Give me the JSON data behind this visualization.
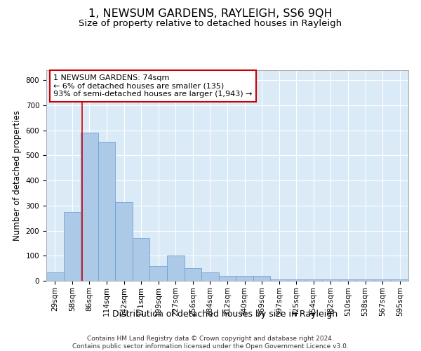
{
  "title": "1, NEWSUM GARDENS, RAYLEIGH, SS6 9QH",
  "subtitle": "Size of property relative to detached houses in Rayleigh",
  "xlabel": "Distribution of detached houses by size in Rayleigh",
  "ylabel": "Number of detached properties",
  "bar_labels": [
    "29sqm",
    "58sqm",
    "86sqm",
    "114sqm",
    "142sqm",
    "171sqm",
    "199sqm",
    "227sqm",
    "256sqm",
    "284sqm",
    "312sqm",
    "340sqm",
    "369sqm",
    "397sqm",
    "425sqm",
    "454sqm",
    "482sqm",
    "510sqm",
    "538sqm",
    "567sqm",
    "595sqm"
  ],
  "bar_heights": [
    35,
    275,
    590,
    555,
    315,
    170,
    60,
    100,
    50,
    35,
    20,
    20,
    20,
    5,
    5,
    5,
    5,
    5,
    5,
    5,
    5
  ],
  "bar_color": "#adc9e8",
  "bar_edge_color": "#6699cc",
  "background_color": "#daeaf7",
  "grid_color": "#ffffff",
  "annotation_text": "1 NEWSUM GARDENS: 74sqm\n← 6% of detached houses are smaller (135)\n93% of semi-detached houses are larger (1,943) →",
  "annotation_box_color": "#ffffff",
  "annotation_box_edge": "#cc0000",
  "vline_color": "#cc0000",
  "ylim": [
    0,
    840
  ],
  "yticks": [
    0,
    100,
    200,
    300,
    400,
    500,
    600,
    700,
    800
  ],
  "footer": "Contains HM Land Registry data © Crown copyright and database right 2024.\nContains public sector information licensed under the Open Government Licence v3.0.",
  "title_fontsize": 11.5,
  "subtitle_fontsize": 9.5,
  "xlabel_fontsize": 9,
  "ylabel_fontsize": 8.5,
  "tick_fontsize": 7.5,
  "footer_fontsize": 6.5,
  "annotation_fontsize": 8
}
